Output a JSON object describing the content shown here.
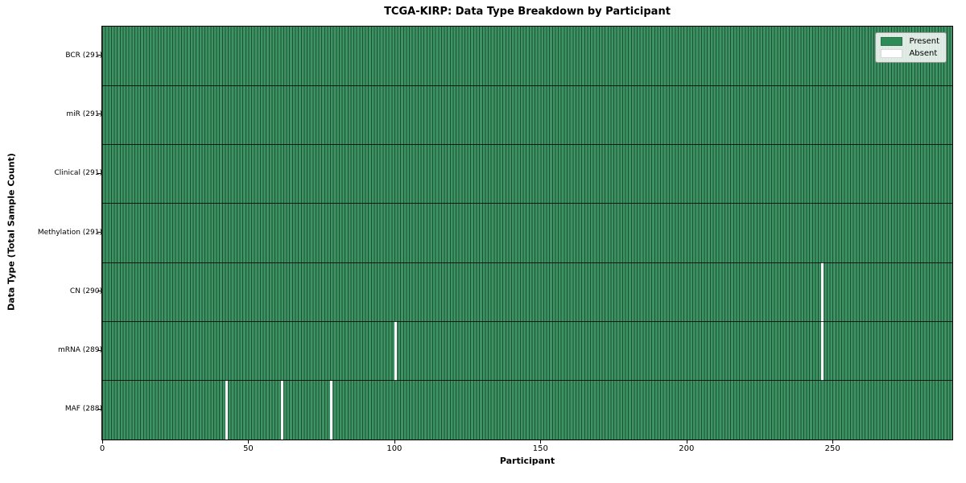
{
  "chart_data": {
    "type": "heatmap",
    "title": "TCGA-KIRP: Data Type Breakdown by Participant",
    "xlabel": "Participant",
    "ylabel": "Data Type (Total Sample Count)",
    "x_range": [
      0,
      291
    ],
    "x_ticks": [
      0,
      50,
      100,
      150,
      200,
      250
    ],
    "n_participants": 291,
    "categories": [
      "BCR (291)",
      "miR (291)",
      "Clinical (291)",
      "Methylation (291)",
      "CN (290)",
      "mRNA (289)",
      "MAF (288)"
    ],
    "rows": [
      {
        "data_type": "BCR",
        "label": "BCR (291)",
        "present_count": 291,
        "absent_participants": []
      },
      {
        "data_type": "miR",
        "label": "miR (291)",
        "present_count": 291,
        "absent_participants": []
      },
      {
        "data_type": "Clinical",
        "label": "Clinical (291)",
        "present_count": 291,
        "absent_participants": []
      },
      {
        "data_type": "Methylation",
        "label": "Methylation (291)",
        "present_count": 291,
        "absent_participants": []
      },
      {
        "data_type": "CN",
        "label": "CN (290)",
        "present_count": 290,
        "absent_participants": [
          246
        ]
      },
      {
        "data_type": "mRNA",
        "label": "mRNA (289)",
        "present_count": 289,
        "absent_participants": [
          100,
          246
        ]
      },
      {
        "data_type": "MAF",
        "label": "MAF (288)",
        "present_count": 288,
        "absent_participants": [
          42,
          61,
          78
        ]
      }
    ],
    "legend": [
      {
        "label": "Present",
        "color": "#2e8b57"
      },
      {
        "label": "Absent",
        "color": "#ffffff"
      }
    ],
    "colors": {
      "present": "#2e8b57",
      "absent": "#ffffff",
      "cell_edge": "rgba(0,0,0,0.42)",
      "row_separator": "rgba(0,0,0,0.8)"
    },
    "legend_position": "upper right",
    "grid": false
  }
}
